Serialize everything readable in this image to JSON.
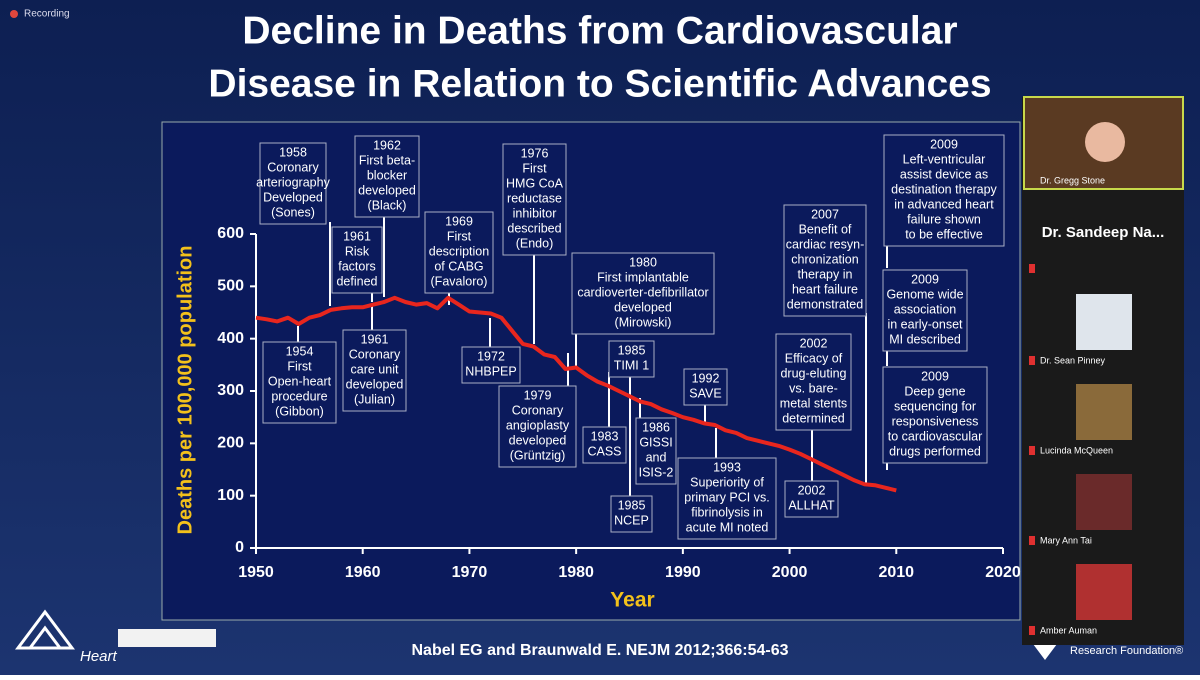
{
  "app": {
    "recording": "Recording"
  },
  "slide": {
    "title_lines": [
      "Decline in Deaths from Cardiovascular",
      "Disease in Relation to Scientific Advances"
    ],
    "citation": "Nabel EG and Braunwald E. NEJM 2012;366:54-63",
    "logos": [
      "Heart",
      "Research Foundation®"
    ]
  },
  "chart_data": {
    "type": "line",
    "x_label": "Year",
    "y_label": "Deaths per 100,000 population",
    "color": "#e8261e",
    "x": [
      1950,
      1951,
      1952,
      1953,
      1954,
      1955,
      1956,
      1957,
      1958,
      1959,
      1960,
      1961,
      1962,
      1963,
      1964,
      1965,
      1966,
      1967,
      1968,
      1969,
      1970,
      1971,
      1972,
      1973,
      1974,
      1975,
      1976,
      1977,
      1978,
      1979,
      1980,
      1981,
      1982,
      1983,
      1984,
      1985,
      1986,
      1987,
      1988,
      1989,
      1990,
      1991,
      1992,
      1993,
      1994,
      1995,
      1996,
      1997,
      1998,
      1999,
      2000,
      2001,
      2002,
      2003,
      2004,
      2005,
      2006,
      2007,
      2008,
      2009,
      2010
    ],
    "values": [
      440,
      437,
      433,
      440,
      428,
      440,
      445,
      455,
      458,
      460,
      460,
      465,
      470,
      478,
      470,
      465,
      468,
      458,
      478,
      465,
      452,
      450,
      448,
      440,
      415,
      390,
      385,
      370,
      365,
      342,
      345,
      330,
      318,
      310,
      300,
      290,
      280,
      275,
      265,
      258,
      250,
      245,
      238,
      235,
      225,
      220,
      210,
      205,
      200,
      195,
      188,
      180,
      170,
      160,
      150,
      140,
      130,
      122,
      120,
      115,
      110
    ],
    "xlim": [
      1950,
      2020
    ],
    "xticks": [
      1950,
      1960,
      1970,
      1980,
      1990,
      2000,
      2010,
      2020
    ],
    "ylim": [
      0,
      600
    ],
    "yticks": [
      0,
      100,
      200,
      300,
      400,
      500,
      600
    ],
    "annotations": [
      {
        "lines": [
          "1958",
          "Coronary",
          "arteriography",
          "Developed",
          "(Sones)"
        ]
      },
      {
        "lines": [
          "1962",
          "First beta-",
          "blocker",
          "developed",
          "(Black)"
        ]
      },
      {
        "lines": [
          "1961",
          "Risk",
          "factors",
          "defined"
        ]
      },
      {
        "lines": [
          "1969",
          "First",
          "description",
          "of CABG",
          "(Favaloro)"
        ]
      },
      {
        "lines": [
          "1976",
          "First",
          "HMG CoA",
          "reductase",
          "inhibitor",
          "described",
          "(Endo)"
        ]
      },
      {
        "lines": [
          "1980",
          "First implantable",
          "cardioverter-defibrillator",
          "developed",
          "(Mirowski)"
        ]
      },
      {
        "lines": [
          "2007",
          "Benefit of",
          "cardiac resyn-",
          "chronization",
          "therapy in",
          "heart failure",
          "demonstrated"
        ]
      },
      {
        "lines": [
          "2009",
          "Left-ventricular",
          "assist device as",
          "destination therapy",
          "in advanced heart",
          "failure shown",
          "to be effective"
        ]
      },
      {
        "lines": [
          "2009",
          "Genome wide",
          "association",
          "in early-onset",
          "MI described"
        ]
      },
      {
        "lines": [
          "2009",
          "Deep gene",
          "sequencing for",
          "responsiveness",
          "to cardiovascular",
          "drugs performed"
        ]
      },
      {
        "lines": [
          "1954",
          "First",
          "Open-heart",
          "procedure",
          "(Gibbon)"
        ]
      },
      {
        "lines": [
          "1961",
          "Coronary",
          "care unit",
          "developed",
          "(Julian)"
        ]
      },
      {
        "lines": [
          "1972",
          "NHBPEP"
        ]
      },
      {
        "lines": [
          "1979",
          "Coronary",
          "angioplasty",
          "developed",
          "(Grüntzig)"
        ]
      },
      {
        "lines": [
          "1983",
          "CASS"
        ]
      },
      {
        "lines": [
          "1985",
          "TIMI 1"
        ]
      },
      {
        "lines": [
          "1985",
          "NCEP"
        ]
      },
      {
        "lines": [
          "1986",
          "GISSI",
          "and",
          "ISIS-2"
        ]
      },
      {
        "lines": [
          "1992",
          "SAVE"
        ]
      },
      {
        "lines": [
          "1993",
          "Superiority of",
          "primary PCI vs.",
          "fibrinolysis in",
          "acute MI noted"
        ]
      },
      {
        "lines": [
          "2002",
          "Efficacy of",
          "drug-eluting",
          "vs. bare-",
          "metal stents",
          "determined"
        ]
      },
      {
        "lines": [
          "2002",
          "ALLHAT"
        ]
      }
    ]
  },
  "participants": [
    {
      "name": "Dr. Gregg Stone"
    },
    {
      "name": "Dr. Sandeep Na..."
    },
    {
      "name": "Dr. Sean Pinney"
    },
    {
      "name": "Lucinda McQueen"
    },
    {
      "name": "Mary Ann Tai"
    },
    {
      "name": "Amber Auman"
    }
  ]
}
